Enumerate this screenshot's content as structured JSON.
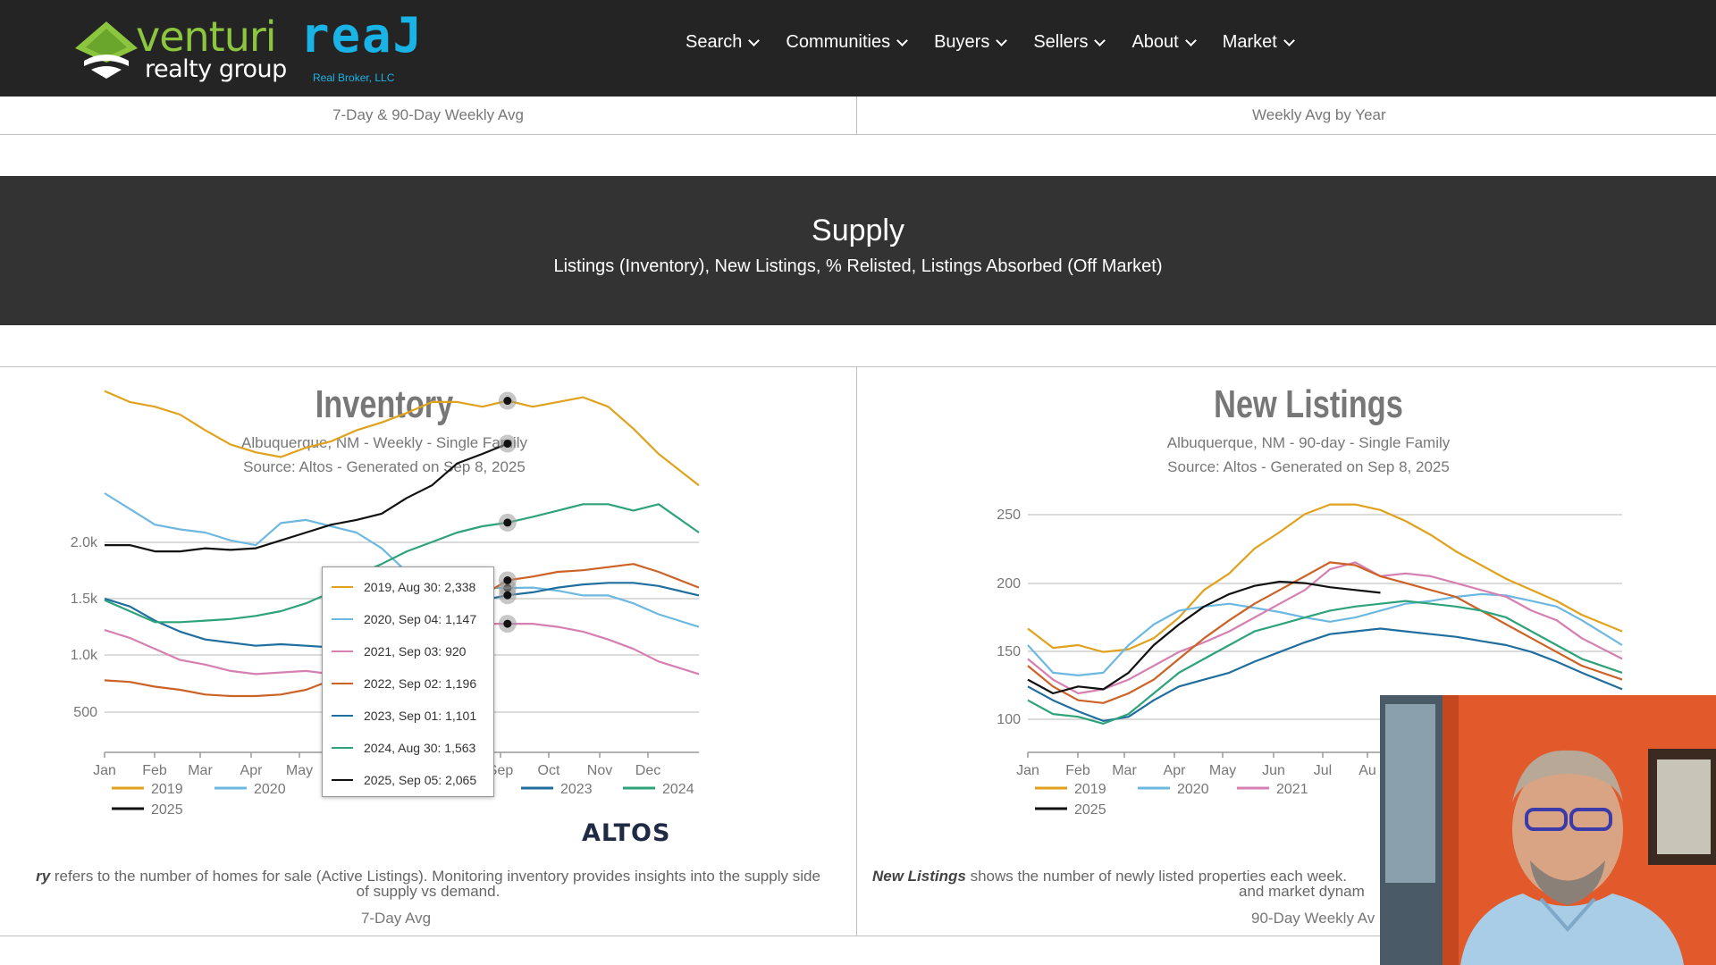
{
  "header": {
    "logo": {
      "venturi": "venturi",
      "realty": "realty group",
      "real": "reaJ",
      "broker": "Real Broker, LLC"
    },
    "nav": [
      {
        "label": "Search"
      },
      {
        "label": "Communities"
      },
      {
        "label": "Buyers"
      },
      {
        "label": "Sellers"
      },
      {
        "label": "About"
      },
      {
        "label": "Market"
      }
    ]
  },
  "top_labels": {
    "left": "7-Day & 90-Day Weekly Avg",
    "right": "Weekly Avg by Year"
  },
  "banner": {
    "title": "Supply",
    "subtitle": "Listings (Inventory), New Listings, % Relisted, Listings Absorbed (Off Market)"
  },
  "colors": {
    "2019": "#e0a21c",
    "2020": "#6db8e0",
    "2021": "#d67fb1",
    "2022": "#cc6226",
    "2023": "#1f6e9e",
    "2024": "#2ea37a",
    "2025": "#111111"
  },
  "inventory": {
    "title": "Inventory",
    "subtitle1": "Albuquerque, NM - Weekly - Single Family",
    "subtitle2": "Source: Altos - Generated on Sep 8, 2025",
    "description_bold": "ry",
    "description": " refers to the number of homes for sale (Active Listings). Monitoring inventory provides insights into the supply side",
    "description2": "of supply vs demand.",
    "avg_label": "7-Day Avg",
    "brand": "ALTOS",
    "tooltip": [
      {
        "text": "2019, Aug 30: 2,338",
        "year": "2019"
      },
      {
        "text": "2020, Sep 04: 1,147",
        "year": "2020"
      },
      {
        "text": "2021, Sep 03: 920",
        "year": "2021"
      },
      {
        "text": "2022, Sep 02: 1,196",
        "year": "2022"
      },
      {
        "text": "2023, Sep 01: 1,101",
        "year": "2023"
      },
      {
        "text": "2024, Aug 30: 1,563",
        "year": "2024"
      },
      {
        "text": "2025, Sep 05: 2,065",
        "year": "2025"
      }
    ],
    "legend_visible": [
      "2019",
      "2020",
      "2023",
      "2024",
      "2025"
    ]
  },
  "new_listings": {
    "title": "New Listings",
    "subtitle1": "Albuquerque, NM - 90-day - Single Family",
    "subtitle2": "Source: Altos - Generated on Sep 8, 2025",
    "description_bold": "New Listings",
    "description": " shows the number of newly listed properties each week.",
    "description2": "and market dynam",
    "avg_label": "90-Day Weekly Av",
    "legend_visible": [
      "2019",
      "2020",
      "2021",
      "2025"
    ]
  },
  "chart_data": [
    {
      "type": "line",
      "title": "Inventory",
      "x_ticks": [
        "Jan",
        "Feb",
        "Mar",
        "Apr",
        "May",
        "Sep",
        "Oct",
        "Nov",
        "Dec"
      ],
      "y_ticks": [
        "2.0k",
        "1.5k",
        "1.0k",
        "500"
      ],
      "ylim": [
        0,
        2500
      ],
      "x_months": [
        1,
        1.5,
        2,
        2.5,
        3,
        3.5,
        4,
        4.5,
        5,
        5.5,
        6,
        6.5,
        7,
        7.5,
        8,
        8.5,
        9,
        9.5,
        10,
        10.5,
        11,
        11.5,
        12,
        12.8
      ],
      "series": [
        {
          "name": "2019",
          "values": [
            2400,
            2330,
            2300,
            2250,
            2150,
            2060,
            2010,
            1980,
            2040,
            2080,
            2150,
            2200,
            2260,
            2330,
            2330,
            2300,
            2338,
            2300,
            2330,
            2360,
            2300,
            2160,
            2000,
            1800
          ]
        },
        {
          "name": "2020",
          "values": [
            1750,
            1650,
            1550,
            1520,
            1500,
            1450,
            1420,
            1560,
            1580,
            1540,
            1500,
            1400,
            1250,
            1200,
            1170,
            1150,
            1147,
            1150,
            1130,
            1100,
            1100,
            1050,
            980,
            900
          ]
        },
        {
          "name": "2021",
          "values": [
            880,
            830,
            760,
            690,
            660,
            620,
            600,
            610,
            620,
            600,
            570,
            540,
            560,
            820,
            940,
            920,
            920,
            920,
            900,
            870,
            820,
            760,
            680,
            600
          ]
        },
        {
          "name": "2022",
          "values": [
            560,
            550,
            520,
            500,
            470,
            460,
            460,
            470,
            500,
            560,
            620,
            720,
            800,
            900,
            1000,
            1100,
            1196,
            1220,
            1250,
            1260,
            1280,
            1300,
            1250,
            1150
          ]
        },
        {
          "name": "2023",
          "values": [
            1080,
            1030,
            940,
            870,
            820,
            800,
            780,
            790,
            780,
            770,
            800,
            850,
            900,
            970,
            1040,
            1070,
            1101,
            1120,
            1150,
            1170,
            1180,
            1180,
            1160,
            1100
          ]
        },
        {
          "name": "2024",
          "values": [
            1070,
            1000,
            930,
            930,
            940,
            950,
            970,
            1000,
            1050,
            1120,
            1230,
            1300,
            1380,
            1440,
            1500,
            1540,
            1563,
            1600,
            1640,
            1680,
            1680,
            1640,
            1680,
            1500
          ]
        },
        {
          "name": "2025",
          "values": [
            1420,
            1420,
            1380,
            1380,
            1400,
            1390,
            1400,
            1450,
            1500,
            1550,
            1580,
            1620,
            1720,
            1800,
            1940,
            2000,
            2065
          ]
        }
      ]
    },
    {
      "type": "line",
      "title": "New Listings",
      "x_ticks": [
        "Jan",
        "Feb",
        "Mar",
        "Apr",
        "May",
        "Jun",
        "Jul",
        "Au"
      ],
      "y_ticks": [
        "250",
        "200",
        "150",
        "100"
      ],
      "ylim": [
        90,
        265
      ],
      "x_months": [
        1,
        1.5,
        2,
        2.5,
        3,
        3.5,
        4,
        4.5,
        5,
        5.5,
        6,
        6.5,
        7,
        7.5,
        8,
        8.5,
        9,
        9.5,
        10,
        10.5,
        11,
        11.5,
        12,
        12.8
      ],
      "series": [
        {
          "name": "2019",
          "values": [
            172,
            158,
            160,
            155,
            157,
            165,
            180,
            200,
            212,
            230,
            242,
            255,
            262,
            262,
            258,
            250,
            240,
            228,
            218,
            208,
            200,
            192,
            182,
            170
          ]
        },
        {
          "name": "2020",
          "values": [
            160,
            140,
            138,
            140,
            160,
            175,
            185,
            188,
            190,
            187,
            184,
            180,
            177,
            180,
            185,
            190,
            192,
            195,
            197,
            196,
            192,
            188,
            178,
            160
          ]
        },
        {
          "name": "2021",
          "values": [
            150,
            135,
            125,
            128,
            135,
            145,
            155,
            162,
            170,
            180,
            190,
            200,
            215,
            220,
            210,
            212,
            210,
            205,
            200,
            195,
            185,
            178,
            165,
            150
          ]
        },
        {
          "name": "2022",
          "values": [
            145,
            130,
            120,
            118,
            125,
            135,
            150,
            165,
            178,
            190,
            200,
            210,
            220,
            218,
            210,
            205,
            200,
            195,
            185,
            175,
            165,
            155,
            145,
            135
          ]
        },
        {
          "name": "2023",
          "values": [
            130,
            120,
            112,
            105,
            108,
            120,
            130,
            135,
            140,
            148,
            155,
            162,
            168,
            170,
            172,
            170,
            168,
            166,
            163,
            160,
            155,
            148,
            140,
            128
          ]
        },
        {
          "name": "2024",
          "values": [
            120,
            110,
            108,
            103,
            110,
            125,
            140,
            150,
            160,
            170,
            175,
            180,
            185,
            188,
            190,
            192,
            190,
            188,
            185,
            180,
            170,
            160,
            150,
            140
          ]
        },
        {
          "name": "2025",
          "values": [
            135,
            125,
            130,
            128,
            140,
            160,
            175,
            188,
            197,
            203,
            206,
            205,
            202,
            200,
            198
          ]
        }
      ]
    }
  ]
}
